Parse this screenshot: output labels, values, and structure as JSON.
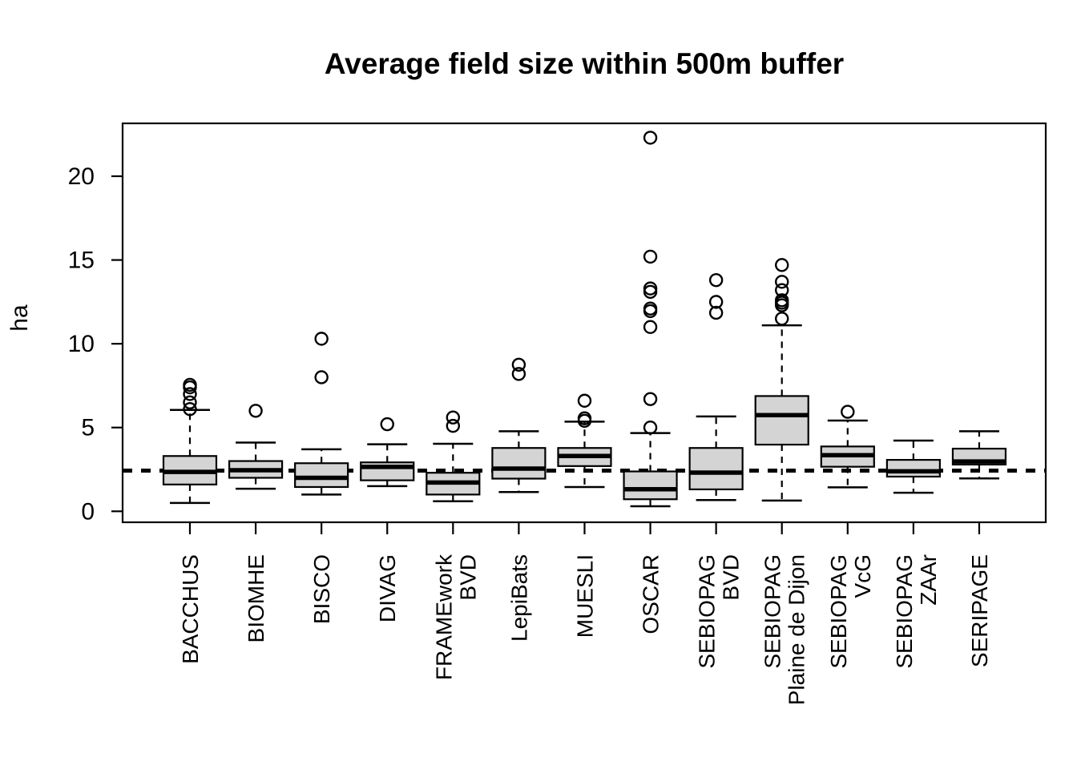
{
  "chart_data": {
    "type": "boxplot",
    "title": "Average field size within 500m buffer",
    "ylabel": "ha",
    "xlabel": "",
    "unit": "ha",
    "grid": false,
    "legend": "none",
    "y_ticks": [
      0,
      5,
      10,
      15,
      20
    ],
    "ylim": [
      -0.65,
      23.2
    ],
    "reference_line": {
      "value": 2.43,
      "style": "dashed",
      "color": "#000000"
    },
    "box_fill": "#d4d4d4",
    "box_stroke": "#000000",
    "background": "#ffffff",
    "categories": [
      "BACCHUS",
      "BIOMHE",
      "BISCO",
      "DIVAG",
      "FRAMEwork BVD",
      "LepiBats",
      "MUESLI",
      "OSCAR",
      "SEBIOPAG BVD",
      "SEBIOPAG Plaine de Dijon",
      "SEBIOPAG VcG",
      "SEBIOPAG ZAAr",
      "SERIPAGE"
    ],
    "boxes": [
      {
        "label": "BACCHUS",
        "label_lines": [
          "BACCHUS"
        ],
        "whisker_low": 0.5,
        "q1": 1.6,
        "median": 2.35,
        "q3": 3.3,
        "whisker_high": 6.05,
        "outliers": [
          6.1,
          6.5,
          7.0,
          7.4,
          7.55
        ]
      },
      {
        "label": "BIOMHE",
        "label_lines": [
          "BIOMHE"
        ],
        "whisker_low": 1.35,
        "q1": 2.0,
        "median": 2.45,
        "q3": 3.0,
        "whisker_high": 4.1,
        "outliers": [
          6.0
        ]
      },
      {
        "label": "BISCO",
        "label_lines": [
          "BISCO"
        ],
        "whisker_low": 1.0,
        "q1": 1.45,
        "median": 2.0,
        "q3": 2.87,
        "whisker_high": 3.7,
        "outliers": [
          8.0,
          10.3
        ]
      },
      {
        "label": "DIVAG",
        "label_lines": [
          "DIVAG"
        ],
        "whisker_low": 1.5,
        "q1": 1.85,
        "median": 2.65,
        "q3": 2.92,
        "whisker_high": 4.0,
        "outliers": [
          5.2
        ]
      },
      {
        "label": "FRAMEwork BVD",
        "label_lines": [
          "FRAMEwork",
          "BVD"
        ],
        "whisker_low": 0.6,
        "q1": 1.0,
        "median": 1.72,
        "q3": 2.3,
        "whisker_high": 4.03,
        "outliers": [
          5.1,
          5.6
        ]
      },
      {
        "label": "LepiBats",
        "label_lines": [
          "LepiBats"
        ],
        "whisker_low": 1.15,
        "q1": 1.95,
        "median": 2.55,
        "q3": 3.78,
        "whisker_high": 4.78,
        "outliers": [
          8.2,
          8.75
        ]
      },
      {
        "label": "MUESLI",
        "label_lines": [
          "MUESLI"
        ],
        "whisker_low": 1.45,
        "q1": 2.7,
        "median": 3.3,
        "q3": 3.78,
        "whisker_high": 5.35,
        "outliers": [
          5.4,
          5.55,
          6.6
        ]
      },
      {
        "label": "OSCAR",
        "label_lines": [
          "OSCAR"
        ],
        "whisker_low": 0.3,
        "q1": 0.72,
        "median": 1.32,
        "q3": 2.38,
        "whisker_high": 4.67,
        "outliers": [
          5.0,
          6.7,
          11.0,
          11.95,
          12.1,
          13.1,
          13.3,
          15.2,
          22.3
        ]
      },
      {
        "label": "SEBIOPAG BVD",
        "label_lines": [
          "SEBIOPAG",
          "BVD"
        ],
        "whisker_low": 0.67,
        "q1": 1.31,
        "median": 2.31,
        "q3": 3.78,
        "whisker_high": 5.66,
        "outliers": [
          11.85,
          12.5,
          13.8
        ]
      },
      {
        "label": "SEBIOPAG Plaine de Dijon",
        "label_lines": [
          "SEBIOPAG",
          "Plaine de Dijon"
        ],
        "whisker_low": 0.64,
        "q1": 3.98,
        "median": 5.74,
        "q3": 6.88,
        "whisker_high": 11.1,
        "outliers": [
          11.5,
          12.3,
          12.45,
          12.6,
          13.2,
          13.7,
          14.7
        ]
      },
      {
        "label": "SEBIOPAG VcG",
        "label_lines": [
          "SEBIOPAG",
          "VcG"
        ],
        "whisker_low": 1.43,
        "q1": 2.66,
        "median": 3.35,
        "q3": 3.87,
        "whisker_high": 5.42,
        "outliers": [
          5.94
        ]
      },
      {
        "label": "SEBIOPAG ZAAr",
        "label_lines": [
          "SEBIOPAG",
          "ZAAr"
        ],
        "whisker_low": 1.11,
        "q1": 2.07,
        "median": 2.39,
        "q3": 3.07,
        "whisker_high": 4.22,
        "outliers": []
      },
      {
        "label": "SERIPAGE",
        "label_lines": [
          "SERIPAGE"
        ],
        "whisker_low": 1.96,
        "q1": 2.79,
        "median": 2.97,
        "q3": 3.74,
        "whisker_high": 4.78,
        "outliers": []
      }
    ]
  }
}
